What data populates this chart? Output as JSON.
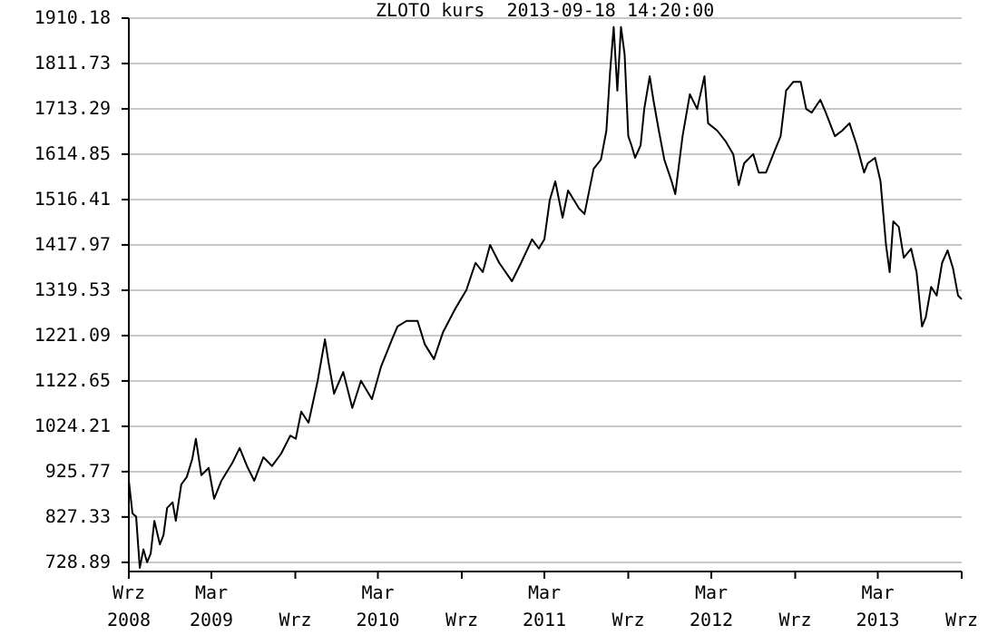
{
  "chart_data": {
    "type": "line",
    "title": "ZLOTO kurs  2013-09-18 14:20:00",
    "x": [
      "2008-09-18",
      "2008-09-26",
      "2008-10-04",
      "2008-10-12",
      "2008-10-20",
      "2008-10-28",
      "2008-11-05",
      "2008-11-13",
      "2008-11-25",
      "2008-12-03",
      "2008-12-11",
      "2008-12-23",
      "2008-12-30",
      "2009-01-11",
      "2009-01-23",
      "2009-02-04",
      "2009-02-12",
      "2009-02-24",
      "2009-03-12",
      "2009-03-24",
      "2009-04-09",
      "2009-05-03",
      "2009-05-19",
      "2009-06-04",
      "2009-06-20",
      "2009-07-10",
      "2009-07-29",
      "2009-08-18",
      "2009-09-07",
      "2009-09-19",
      "2009-10-01",
      "2009-10-17",
      "2009-11-06",
      "2009-11-22",
      "2009-11-30",
      "2009-12-12",
      "2010-01-01",
      "2010-01-21",
      "2010-02-09",
      "2010-03-05",
      "2010-03-25",
      "2010-04-18",
      "2010-04-30",
      "2010-05-20",
      "2010-06-13",
      "2010-06-29",
      "2010-07-19",
      "2010-08-08",
      "2010-09-04",
      "2010-09-28",
      "2010-10-18",
      "2010-11-03",
      "2010-11-19",
      "2010-12-09",
      "2011-01-06",
      "2011-01-26",
      "2011-02-19",
      "2011-03-06",
      "2011-03-18",
      "2011-03-30",
      "2011-04-11",
      "2011-04-27",
      "2011-05-09",
      "2011-06-02",
      "2011-06-14",
      "2011-07-04",
      "2011-07-20",
      "2011-08-01",
      "2011-08-09",
      "2011-08-17",
      "2011-08-25",
      "2011-09-02",
      "2011-09-10",
      "2011-09-18",
      "2011-09-25",
      "2011-10-03",
      "2011-10-15",
      "2011-10-23",
      "2011-11-04",
      "2011-11-12",
      "2011-11-24",
      "2011-12-06",
      "2011-12-22",
      "2011-12-30",
      "2012-01-15",
      "2012-01-31",
      "2012-02-16",
      "2012-03-03",
      "2012-03-11",
      "2012-03-31",
      "2012-04-19",
      "2012-05-05",
      "2012-05-17",
      "2012-05-29",
      "2012-06-18",
      "2012-06-30",
      "2012-07-16",
      "2012-08-01",
      "2012-08-17",
      "2012-08-29",
      "2012-09-14",
      "2012-09-30",
      "2012-10-12",
      "2012-10-24",
      "2012-11-12",
      "2012-11-24",
      "2012-12-14",
      "2012-12-30",
      "2013-01-15",
      "2013-01-31",
      "2013-02-16",
      "2013-02-24",
      "2013-03-12",
      "2013-03-24",
      "2013-04-05",
      "2013-04-13",
      "2013-04-21",
      "2013-05-03",
      "2013-05-14",
      "2013-05-30",
      "2013-06-11",
      "2013-06-19",
      "2013-06-23",
      "2013-07-01",
      "2013-07-13",
      "2013-07-25",
      "2013-08-06",
      "2013-08-18",
      "2013-08-30",
      "2013-09-10",
      "2013-09-18"
    ],
    "series": [
      {
        "color": "#000000",
        "values": [
          906,
          835,
          828,
          717,
          757,
          729,
          748,
          819,
          768,
          788,
          847,
          859,
          819,
          898,
          914,
          953,
          997,
          918,
          934,
          867,
          906,
          945,
          977,
          938,
          906,
          957,
          938,
          965,
          1004,
          997,
          1056,
          1032,
          1123,
          1213,
          1162,
          1095,
          1142,
          1064,
          1123,
          1083,
          1154,
          1213,
          1241,
          1253,
          1253,
          1202,
          1170,
          1229,
          1280,
          1320,
          1379,
          1359,
          1418,
          1379,
          1339,
          1379,
          1430,
          1410,
          1430,
          1516,
          1556,
          1477,
          1536,
          1497,
          1485,
          1583,
          1603,
          1666,
          1792,
          1891,
          1753,
          1891,
          1831,
          1654,
          1634,
          1607,
          1634,
          1713,
          1784,
          1733,
          1666,
          1603,
          1556,
          1528,
          1654,
          1745,
          1713,
          1784,
          1682,
          1666,
          1642,
          1615,
          1548,
          1595,
          1615,
          1575,
          1575,
          1615,
          1654,
          1753,
          1772,
          1772,
          1713,
          1705,
          1733,
          1705,
          1654,
          1666,
          1682,
          1634,
          1575,
          1595,
          1607,
          1556,
          1418,
          1359,
          1469,
          1457,
          1390,
          1410,
          1359,
          1280,
          1241,
          1260,
          1327,
          1308,
          1379,
          1406,
          1367,
          1308,
          1300
        ]
      }
    ],
    "xlim": [
      "2008-09-18",
      "2013-09-18"
    ],
    "xticks": [
      {
        "value": "2008-09-18",
        "label": "Wrz 2008"
      },
      {
        "value": "2009-03-18",
        "label": "Mar 2009"
      },
      {
        "value": "2009-09-18",
        "label": "Wrz"
      },
      {
        "value": "2010-03-18",
        "label": "Mar 2010"
      },
      {
        "value": "2010-09-18",
        "label": "Wrz"
      },
      {
        "value": "2011-03-18",
        "label": "Mar 2011"
      },
      {
        "value": "2011-09-18",
        "label": "Wrz"
      },
      {
        "value": "2012-03-18",
        "label": "Mar 2012"
      },
      {
        "value": "2012-09-18",
        "label": "Wrz"
      },
      {
        "value": "2013-03-18",
        "label": "Mar 2013"
      },
      {
        "value": "2013-09-18",
        "label": "Wrz"
      }
    ],
    "ylim": [
      709,
      1910.18
    ],
    "yticks": [
      {
        "value": 728.89,
        "label": "728.89"
      },
      {
        "value": 827.33,
        "label": "827.33"
      },
      {
        "value": 925.77,
        "label": "925.77"
      },
      {
        "value": 1024.21,
        "label": "1024.21"
      },
      {
        "value": 1122.65,
        "label": "1122.65"
      },
      {
        "value": 1221.09,
        "label": "1221.09"
      },
      {
        "value": 1319.53,
        "label": "1319.53"
      },
      {
        "value": 1417.97,
        "label": "1417.97"
      },
      {
        "value": 1516.41,
        "label": "1516.41"
      },
      {
        "value": 1614.85,
        "label": "1614.85"
      },
      {
        "value": 1713.29,
        "label": "1713.29"
      },
      {
        "value": 1811.73,
        "label": "1811.73"
      },
      {
        "value": 1910.18,
        "label": "1910.18"
      }
    ],
    "grid": "y",
    "marker": "none",
    "line_style": "solid"
  }
}
